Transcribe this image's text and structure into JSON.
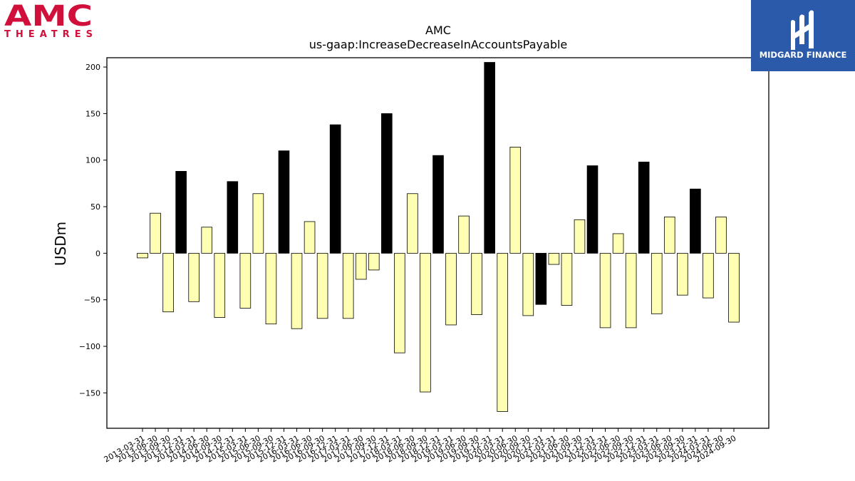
{
  "header": {
    "company_logo_text": "AMC",
    "company_logo_subtext": "THEATRES",
    "brand_logo_text": "MIDGARD FINANCE"
  },
  "colors": {
    "amc_red": "#d0103a",
    "midgard_blue": "#2b5aab",
    "bar_highlight": "#000000",
    "bar_normal": "#ffffb3"
  },
  "chart_data": {
    "type": "bar",
    "title": "AMC",
    "subtitle": "us-gaap:IncreaseDecreaseInAccountsPayable",
    "xlabel": "",
    "ylabel": "USDm",
    "ylim": [
      -188,
      210
    ],
    "yticks": [
      200,
      150,
      100,
      50,
      0,
      -50,
      -100,
      -150
    ],
    "grid": false,
    "categories": [
      "2013-03-31",
      "2013-06-30",
      "2013-09-30",
      "2013-12-31",
      "2014-03-31",
      "2014-06-30",
      "2014-09-30",
      "2014-12-31",
      "2015-03-31",
      "2015-06-30",
      "2015-09-30",
      "2015-12-31",
      "2016-03-31",
      "2016-06-30",
      "2016-09-30",
      "2016-12-31",
      "2017-03-31",
      "2017-06-30",
      "2017-09-30",
      "2017-12-31",
      "2018-03-31",
      "2018-06-30",
      "2018-09-30",
      "2018-12-31",
      "2019-03-31",
      "2019-06-30",
      "2019-09-30",
      "2019-12-31",
      "2020-03-31",
      "2020-06-30",
      "2020-09-30",
      "2020-12-31",
      "2021-03-31",
      "2021-06-30",
      "2021-09-30",
      "2021-12-31",
      "2022-03-31",
      "2022-06-30",
      "2022-09-30",
      "2022-12-31",
      "2023-03-31",
      "2023-06-30",
      "2023-09-30",
      "2023-12-31",
      "2024-03-31",
      "2024-06-30",
      "2024-09-30"
    ],
    "values": [
      -5,
      43,
      -63,
      88,
      -52,
      28,
      -69,
      77,
      -59,
      64,
      -76,
      110,
      -81,
      34,
      -70,
      138,
      -70,
      -28,
      -18,
      150,
      -107,
      64,
      -149,
      105,
      -77,
      40,
      -66,
      205,
      -170,
      114,
      -67,
      -55,
      -12,
      -56,
      36,
      94,
      -80,
      21,
      -80,
      98,
      -65,
      39,
      -45,
      69,
      -48,
      39,
      -74
    ],
    "highlighted": [
      false,
      false,
      false,
      true,
      false,
      false,
      false,
      true,
      false,
      false,
      false,
      true,
      false,
      false,
      false,
      true,
      false,
      false,
      false,
      true,
      false,
      false,
      false,
      true,
      false,
      false,
      false,
      true,
      false,
      false,
      false,
      true,
      false,
      false,
      false,
      true,
      false,
      false,
      false,
      true,
      false,
      false,
      false,
      true,
      false,
      false,
      false
    ]
  }
}
